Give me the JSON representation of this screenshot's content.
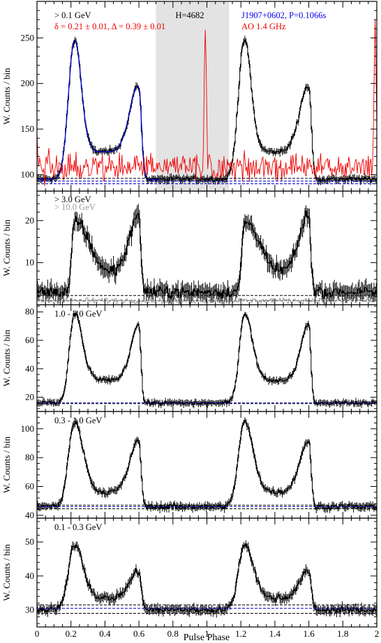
{
  "figure": {
    "xlabel": "Pulse Phase",
    "ylabel": "W. Counts / bin"
  },
  "chart_data": [
    {
      "type": "line",
      "panel": "top",
      "xlim": [
        0,
        2
      ],
      "ylim": [
        82,
        290
      ],
      "yticks": [
        100,
        150,
        200,
        250
      ],
      "xticks": [
        0,
        0.2,
        0.4,
        0.6,
        0.8,
        1,
        1.2,
        1.4,
        1.6,
        1.8,
        2
      ],
      "xticklabels": [
        "0",
        "0.2",
        "0.4",
        "0.6",
        "0.8",
        "1",
        "1.2",
        "1.4",
        "1.6",
        "1.8",
        "2"
      ],
      "show_xticklabels": false,
      "shaded_region": [
        0.7,
        1.13
      ],
      "annotations": [
        {
          "text": "> 0.1 GeV",
          "color": "#000000",
          "anchor": "start"
        },
        {
          "text": "δ = 0.21 ± 0.01, Δ = 0.39 ± 0.01",
          "color": "#ee0000",
          "anchor": "start"
        },
        {
          "text": "H=4682",
          "color": "#000000",
          "anchor": "middle"
        },
        {
          "text": "J1907+0602, P=0.1066s",
          "color": "#0000ee",
          "anchor": "start"
        },
        {
          "text": "AO 1.4 GHz",
          "color": "#ee0000",
          "anchor": "start"
        }
      ],
      "series": [
        {
          "role": "data",
          "color": "#000000",
          "base": 95,
          "peak1": {
            "x": 0.22,
            "amp": 152,
            "w_left": 0.035,
            "w_right": 0.04
          },
          "peak2": {
            "x": 0.6,
            "amp": 100,
            "w_left": 0.05,
            "w_right": 0.015
          },
          "bridge": 30,
          "noise": 4
        },
        {
          "role": "model",
          "color": "#0000cc",
          "x_range": [
            0,
            0.72
          ],
          "base": 95,
          "peak1": {
            "x": 0.22,
            "amp": 152
          },
          "peak2": {
            "x": 0.6,
            "amp": 100
          },
          "bridge": 30
        },
        {
          "role": "radio",
          "color": "#ee0000",
          "base": 105,
          "peak": {
            "x": 0.99,
            "value": 265
          },
          "noise": 14
        }
      ],
      "background_lines": [
        {
          "y": 96,
          "color": "#000000",
          "style": "dashed"
        },
        {
          "y": 93,
          "color": "#0000cc",
          "style": "dashed"
        },
        {
          "y": 90,
          "color": "#0000cc",
          "style": "dashed"
        }
      ]
    },
    {
      "type": "line",
      "panel": "high",
      "xlim": [
        0,
        2
      ],
      "ylim": [
        0,
        27
      ],
      "yticks": [
        10,
        20
      ],
      "xticks": [
        0,
        0.2,
        0.4,
        0.6,
        0.8,
        1,
        1.2,
        1.4,
        1.6,
        1.8,
        2
      ],
      "xticklabels": [
        "0",
        "0.2",
        "0.4",
        "0.6",
        "0.8",
        "1",
        "1.2",
        "1.4",
        "1.6",
        "1.8",
        "2"
      ],
      "show_xticklabels": false,
      "annotations": [
        {
          "text": "> 3.0 GeV",
          "color": "#000000",
          "anchor": "start"
        },
        {
          "text": "> 10.0 GeV",
          "color": "#999999",
          "anchor": "start"
        }
      ],
      "series": [
        {
          "role": "data",
          "color": "#000000",
          "base": 3,
          "peak1": {
            "x": 0.22,
            "amp": 16,
            "w_left": 0.015,
            "w_right": 0.07
          },
          "peak2": {
            "x": 0.6,
            "amp": 18,
            "w_left": 0.05,
            "w_right": 0.012
          },
          "bridge": 5,
          "noise": 2
        },
        {
          "role": "high-energy",
          "color": "#999999",
          "base": 1,
          "noise": 0.6
        }
      ],
      "background_lines": [
        {
          "y": 2.2,
          "color": "#000000",
          "style": "dashed"
        },
        {
          "y": 1.0,
          "color": "#555555",
          "style": "dashed"
        }
      ]
    },
    {
      "type": "line",
      "panel": "mid-high",
      "xlim": [
        0,
        2
      ],
      "ylim": [
        10,
        85
      ],
      "yticks": [
        20,
        40,
        60,
        80
      ],
      "xticks": [
        0,
        0.2,
        0.4,
        0.6,
        0.8,
        1,
        1.2,
        1.4,
        1.6,
        1.8,
        2
      ],
      "xticklabels": [
        "0",
        "0.2",
        "0.4",
        "0.6",
        "0.8",
        "1",
        "1.2",
        "1.4",
        "1.6",
        "1.8",
        "2"
      ],
      "show_xticklabels": false,
      "annotations": [
        {
          "text": "1.0 - 3.0 GeV",
          "color": "#000000",
          "anchor": "start"
        }
      ],
      "series": [
        {
          "role": "data",
          "color": "#000000",
          "base": 16,
          "peak1": {
            "x": 0.22,
            "amp": 62,
            "w_left": 0.03,
            "w_right": 0.045
          },
          "peak2": {
            "x": 0.6,
            "amp": 54,
            "w_left": 0.045,
            "w_right": 0.012
          },
          "bridge": 16,
          "noise": 2.2
        }
      ],
      "background_lines": [
        {
          "y": 16,
          "color": "#0000cc",
          "style": "dashed"
        },
        {
          "y": 15.5,
          "color": "#000000",
          "style": "dashed"
        }
      ]
    },
    {
      "type": "line",
      "panel": "mid-low",
      "xlim": [
        0,
        2
      ],
      "ylim": [
        38,
        112
      ],
      "yticks": [
        40,
        60,
        80,
        100
      ],
      "xticks": [
        0,
        0.2,
        0.4,
        0.6,
        0.8,
        1,
        1.2,
        1.4,
        1.6,
        1.8,
        2
      ],
      "xticklabels": [
        "0",
        "0.2",
        "0.4",
        "0.6",
        "0.8",
        "1",
        "1.2",
        "1.4",
        "1.6",
        "1.8",
        "2"
      ],
      "show_xticklabels": false,
      "annotations": [
        {
          "text": "0.3 - 1.0 GeV",
          "color": "#000000",
          "anchor": "start"
        }
      ],
      "series": [
        {
          "role": "data",
          "color": "#000000",
          "base": 46,
          "peak1": {
            "x": 0.22,
            "amp": 58,
            "w_left": 0.035,
            "w_right": 0.05
          },
          "peak2": {
            "x": 0.6,
            "amp": 45,
            "w_left": 0.05,
            "w_right": 0.013
          },
          "bridge": 10,
          "noise": 2.6
        }
      ],
      "background_lines": [
        {
          "y": 47,
          "color": "#000000",
          "style": "dashed"
        },
        {
          "y": 46,
          "color": "#0000cc",
          "style": "dashed"
        },
        {
          "y": 44.5,
          "color": "#000000",
          "style": "dashed"
        }
      ]
    },
    {
      "type": "line",
      "panel": "low",
      "xlim": [
        0,
        2
      ],
      "ylim": [
        25,
        57
      ],
      "yticks": [
        30,
        40,
        50
      ],
      "xticks": [
        0,
        0.2,
        0.4,
        0.6,
        0.8,
        1,
        1.2,
        1.4,
        1.6,
        1.8,
        2
      ],
      "xticklabels": [
        "0",
        "0.2",
        "0.4",
        "0.6",
        "0.8",
        "1",
        "1.2",
        "1.4",
        "1.6",
        "1.8",
        "2"
      ],
      "show_xticklabels": true,
      "annotations": [
        {
          "text": "0.1 - 0.3 GeV",
          "color": "#000000",
          "anchor": "start"
        }
      ],
      "series": [
        {
          "role": "data",
          "color": "#000000",
          "base": 30,
          "peak1": {
            "x": 0.22,
            "amp": 19,
            "w_left": 0.035,
            "w_right": 0.05
          },
          "peak2": {
            "x": 0.6,
            "amp": 11,
            "w_left": 0.05,
            "w_right": 0.015
          },
          "bridge": 3.5,
          "noise": 1.4
        }
      ],
      "background_lines": [
        {
          "y": 31.5,
          "color": "#000000",
          "style": "dashed"
        },
        {
          "y": 30.5,
          "color": "#0000cc",
          "style": "dashed"
        },
        {
          "y": 29,
          "color": "#000000",
          "style": "dashed"
        }
      ]
    }
  ]
}
